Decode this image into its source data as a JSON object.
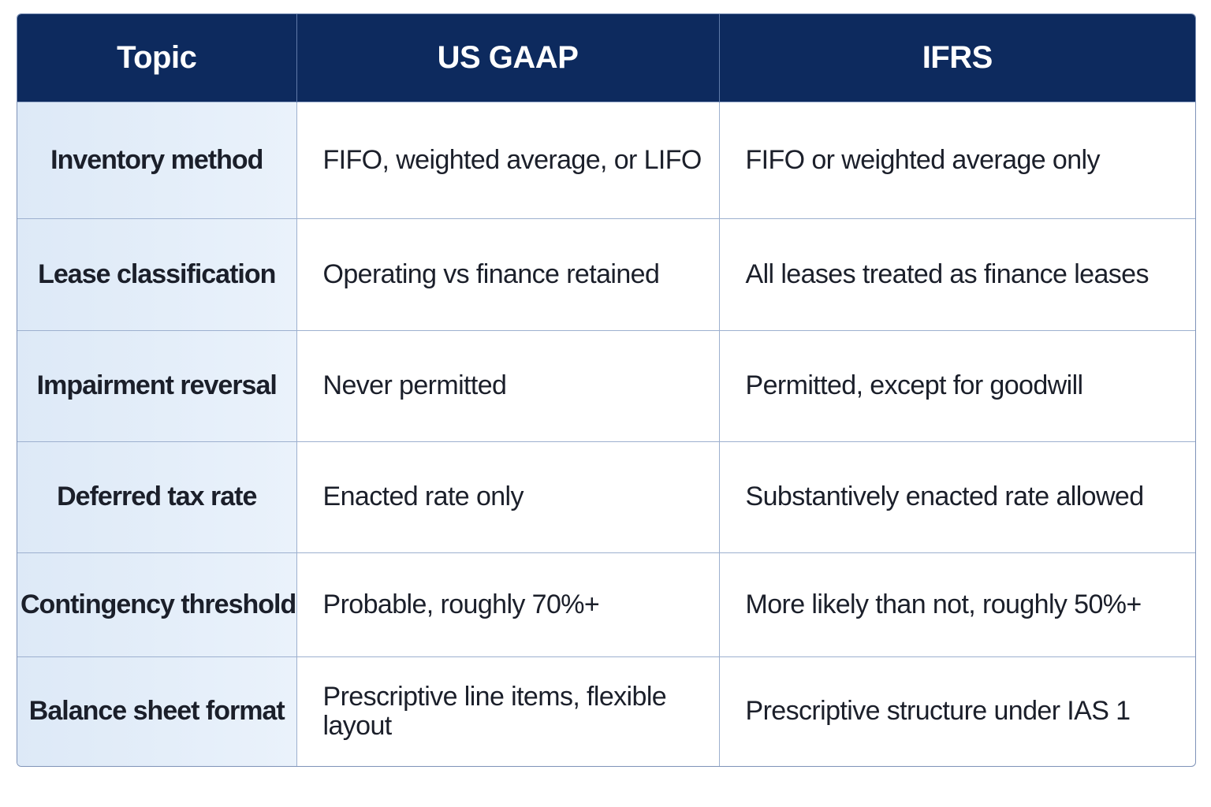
{
  "table": {
    "headers": [
      "Topic",
      "US GAAP",
      "IFRS"
    ],
    "rows": [
      {
        "topic": "Inventory method",
        "us_gaap": "FIFO, weighted average, or LIFO",
        "ifrs": "FIFO or weighted average only"
      },
      {
        "topic": "Lease classification",
        "us_gaap": "Operating vs finance retained",
        "ifrs": "All leases treated as finance leases"
      },
      {
        "topic": "Impairment reversal",
        "us_gaap": "Never permitted",
        "ifrs": "Permitted, except for goodwill"
      },
      {
        "topic": "Deferred tax rate",
        "us_gaap": "Enacted rate only",
        "ifrs": "Substantively enacted rate allowed"
      },
      {
        "topic": "Contingency threshold",
        "us_gaap": "Probable, roughly 70%+",
        "ifrs": "More likely than not, roughly 50%+"
      },
      {
        "topic": "Balance sheet format",
        "us_gaap": "Prescriptive line items, flexible layout",
        "ifrs": "Prescriptive structure under IAS 1"
      }
    ]
  },
  "colors": {
    "header_background": "#0d2a5e",
    "header_text": "#ffffff",
    "topic_background": "#e3edf9",
    "border": "#9db0cf"
  }
}
